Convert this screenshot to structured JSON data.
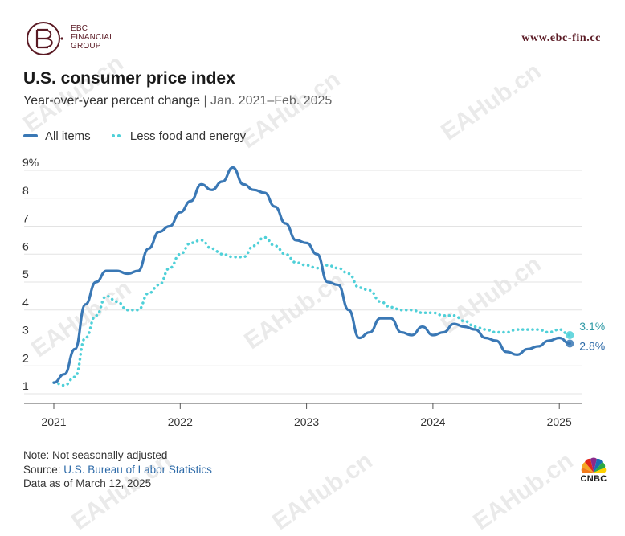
{
  "brand": {
    "logo_lines": [
      "EBC",
      "FINANCIAL",
      "GROUP"
    ],
    "site_url": "www.ebc-fin.cc",
    "color": "#5a1a24"
  },
  "header": {
    "title": "U.S. consumer price index",
    "subtitle_main": "Year-over-year percent change",
    "subtitle_sep": "|",
    "subtitle_range": "Jan. 2021–Feb. 2025"
  },
  "legend": {
    "all_items": "All items",
    "core": "Less food and energy"
  },
  "footer": {
    "note": "Note: Not seasonally adjusted",
    "source_prefix": "Source: ",
    "source_name": "U.S. Bureau of Labor Statistics",
    "date": "Data as of March 12, 2025"
  },
  "cnbc_label": "CNBC",
  "watermark": "EAHub.cn",
  "chart_data": {
    "type": "line",
    "title": "U.S. consumer price index",
    "subtitle": "Year-over-year percent change | Jan. 2021–Feb. 2025",
    "xlabel": "",
    "ylabel": "",
    "grid": true,
    "ylim": [
      1,
      9
    ],
    "yticks": [
      1,
      2,
      3,
      4,
      5,
      6,
      7,
      8,
      9
    ],
    "ytick_labels": [
      "1",
      "2",
      "3",
      "4",
      "5",
      "6",
      "7",
      "8",
      "9%"
    ],
    "xticks": [
      2021,
      2022,
      2023,
      2024,
      2025
    ],
    "xtick_labels": [
      "2021",
      "2022",
      "2023",
      "2024",
      "2025"
    ],
    "x_start": "2021-01",
    "x_step": "month",
    "series": [
      {
        "name": "All items",
        "color": "#3a78b5",
        "style": "solid",
        "end_label": "2.8%",
        "values": [
          1.4,
          1.7,
          2.6,
          4.2,
          5.0,
          5.4,
          5.4,
          5.3,
          5.4,
          6.2,
          6.8,
          7.0,
          7.5,
          7.9,
          8.5,
          8.3,
          8.6,
          9.1,
          8.5,
          8.3,
          8.2,
          7.7,
          7.1,
          6.5,
          6.4,
          6.0,
          5.0,
          4.9,
          4.0,
          3.0,
          3.2,
          3.7,
          3.7,
          3.2,
          3.1,
          3.4,
          3.1,
          3.2,
          3.5,
          3.4,
          3.3,
          3.0,
          2.9,
          2.5,
          2.4,
          2.6,
          2.7,
          2.9,
          3.0,
          2.8
        ]
      },
      {
        "name": "Less food and energy",
        "color": "#4fd0d8",
        "style": "dotted",
        "end_label": "3.1%",
        "values": [
          1.4,
          1.3,
          1.6,
          3.0,
          3.8,
          4.5,
          4.3,
          4.0,
          4.0,
          4.6,
          4.9,
          5.5,
          6.0,
          6.4,
          6.5,
          6.2,
          6.0,
          5.9,
          5.9,
          6.3,
          6.6,
          6.3,
          6.0,
          5.7,
          5.6,
          5.5,
          5.6,
          5.5,
          5.3,
          4.8,
          4.7,
          4.3,
          4.1,
          4.0,
          4.0,
          3.9,
          3.9,
          3.8,
          3.8,
          3.6,
          3.4,
          3.3,
          3.2,
          3.2,
          3.3,
          3.3,
          3.3,
          3.2,
          3.3,
          3.1
        ]
      }
    ]
  }
}
